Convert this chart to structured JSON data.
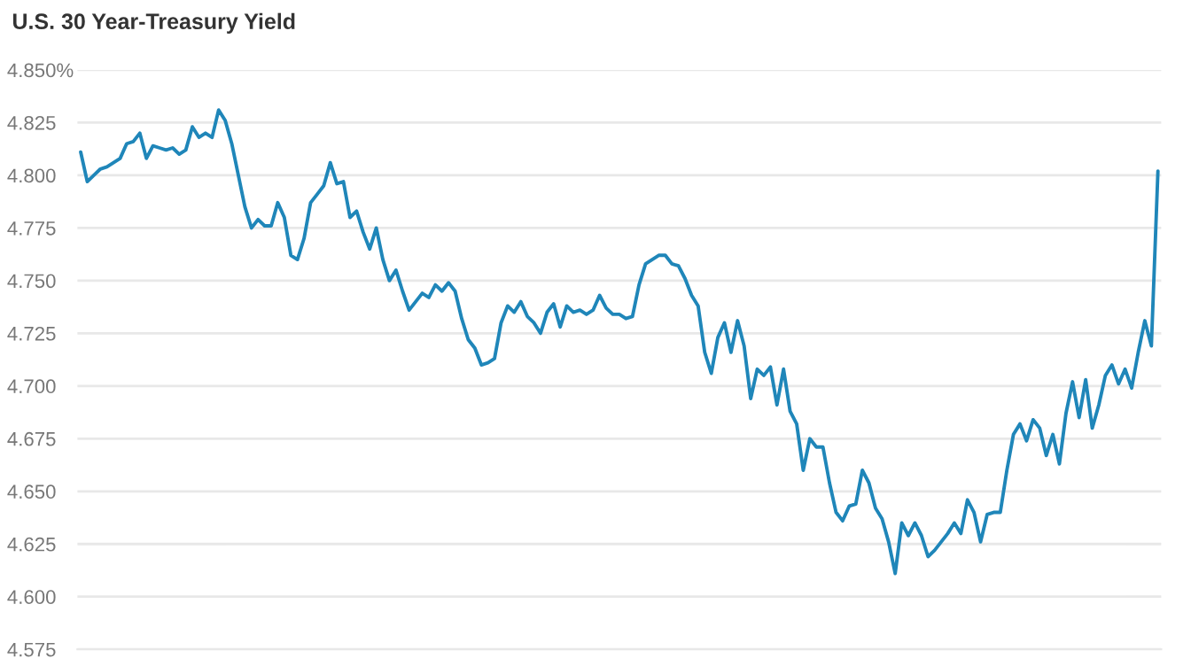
{
  "chart_data": {
    "type": "line",
    "title": "U.S. 30 Year-Treasury Yield",
    "categories": [
      null,
      null,
      null,
      null,
      null,
      null,
      null,
      null,
      null,
      null,
      null,
      null,
      null,
      null,
      null,
      null,
      null,
      null,
      null,
      null,
      null,
      null,
      null,
      null,
      null,
      null,
      null,
      null,
      null,
      null,
      null,
      null,
      null,
      null,
      null,
      null,
      null,
      null,
      null,
      null,
      null,
      null,
      null,
      null,
      null,
      null,
      null,
      null,
      null,
      null,
      null,
      null,
      null,
      null,
      null,
      null,
      null,
      null,
      null,
      null,
      null,
      null,
      null,
      null,
      null,
      null,
      null,
      null,
      null,
      null,
      null,
      null,
      null,
      null,
      null,
      null,
      null,
      null,
      null,
      null,
      null,
      null,
      null,
      null,
      null,
      null,
      null,
      null,
      null,
      null,
      null,
      null,
      null,
      null,
      null,
      null,
      null,
      null,
      null,
      null,
      null,
      null,
      null,
      null,
      null,
      null,
      null,
      null,
      null,
      null,
      null,
      null,
      null,
      null,
      null,
      null,
      null,
      null,
      null,
      null,
      null,
      null,
      null,
      null,
      null,
      null,
      null,
      null,
      null,
      null,
      null,
      null,
      null,
      null,
      null,
      null,
      null,
      null,
      null,
      null,
      null,
      null,
      null,
      null,
      null,
      null,
      null,
      null,
      null,
      null,
      null,
      null,
      null,
      null,
      null,
      null,
      null,
      null,
      null,
      null,
      null,
      null,
      null,
      null,
      null
    ],
    "series": [
      {
        "color": "#1f86b9",
        "values": [
          4.811,
          4.797,
          4.8,
          4.803,
          4.804,
          4.806,
          4.808,
          4.815,
          4.816,
          4.82,
          4.808,
          4.814,
          4.813,
          4.812,
          4.813,
          4.81,
          4.812,
          4.823,
          4.818,
          4.82,
          4.818,
          4.831,
          4.826,
          4.815,
          4.8,
          4.785,
          4.775,
          4.779,
          4.776,
          4.776,
          4.787,
          4.78,
          4.762,
          4.76,
          4.77,
          4.787,
          4.791,
          4.795,
          4.806,
          4.796,
          4.797,
          4.78,
          4.783,
          4.773,
          4.765,
          4.775,
          4.76,
          4.75,
          4.755,
          4.745,
          4.736,
          4.74,
          4.744,
          4.742,
          4.748,
          4.745,
          4.749,
          4.745,
          4.732,
          4.722,
          4.718,
          4.71,
          4.711,
          4.713,
          4.73,
          4.738,
          4.735,
          4.74,
          4.733,
          4.73,
          4.725,
          4.735,
          4.739,
          4.728,
          4.738,
          4.735,
          4.736,
          4.734,
          4.736,
          4.743,
          4.737,
          4.734,
          4.734,
          4.732,
          4.733,
          4.748,
          4.758,
          4.76,
          4.762,
          4.762,
          4.758,
          4.757,
          4.751,
          4.743,
          4.738,
          4.716,
          4.706,
          4.723,
          4.73,
          4.716,
          4.731,
          4.719,
          4.694,
          4.708,
          4.705,
          4.709,
          4.691,
          4.708,
          4.688,
          4.682,
          4.66,
          4.675,
          4.671,
          4.671,
          4.654,
          4.64,
          4.636,
          4.643,
          4.644,
          4.66,
          4.654,
          4.642,
          4.637,
          4.626,
          4.611,
          4.635,
          4.629,
          4.635,
          4.629,
          4.619,
          4.622,
          4.626,
          4.63,
          4.635,
          4.63,
          4.646,
          4.64,
          4.626,
          4.639,
          4.64,
          4.64,
          4.66,
          4.677,
          4.682,
          4.674,
          4.684,
          4.68,
          4.667,
          4.677,
          4.663,
          4.687,
          4.702,
          4.685,
          4.703,
          4.68,
          4.691,
          4.705,
          4.71,
          4.701,
          4.708,
          4.699,
          4.716,
          4.731,
          4.719,
          4.802
        ]
      }
    ],
    "ylim": [
      4.575,
      4.85
    ],
    "yticks": [
      4.575,
      {
        "value": 4.6,
        "label": "4.600"
      },
      4.625,
      {
        "value": 4.65,
        "label": "4.650"
      },
      4.675,
      {
        "value": 4.7,
        "label": "4.700"
      },
      4.725,
      {
        "value": 4.75,
        "label": "4.750"
      },
      4.775,
      {
        "value": 4.8,
        "label": "4.800"
      },
      4.825,
      {
        "value": 4.85,
        "label": "4.850%"
      }
    ],
    "grid": "y",
    "tick_labels": "y",
    "marker": "none",
    "line_style": "solid"
  }
}
